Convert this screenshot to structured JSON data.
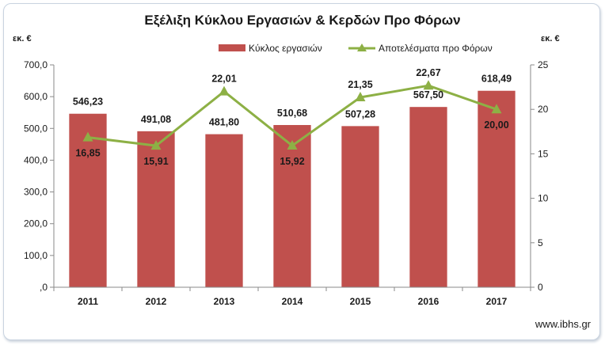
{
  "chart_data": {
    "type": "bar",
    "title": "Εξέλιξη Κύκλου Εργασιών & Κερδών Προ Φόρων",
    "left_unit": "εκ. €",
    "right_unit": "εκ. €",
    "categories": [
      "2011",
      "2012",
      "2013",
      "2014",
      "2015",
      "2016",
      "2017"
    ],
    "series": [
      {
        "name": "Κύκλος εργασιών",
        "type": "bar",
        "axis": "left",
        "color": "#c0504d",
        "values": [
          546.23,
          491.08,
          481.8,
          510.68,
          507.28,
          567.5,
          618.49
        ],
        "labels": [
          "546,23",
          "491,08",
          "481,80",
          "510,68",
          "507,28",
          "567,50",
          "618,49"
        ]
      },
      {
        "name": "Αποτελέσματα προ Φόρων",
        "type": "line",
        "axis": "right",
        "color": "#8db045",
        "values": [
          16.85,
          15.91,
          22.01,
          15.92,
          21.35,
          22.67,
          20.0
        ],
        "labels": [
          "16,85",
          "15,91",
          "22,01",
          "15,92",
          "21,35",
          "22,67",
          "20,00"
        ]
      }
    ],
    "ylim_left": [
      0,
      700
    ],
    "yticks_left": [
      ",0",
      "100,0",
      "200,0",
      "300,0",
      "400,0",
      "500,0",
      "600,0",
      "700,0"
    ],
    "ylim_right": [
      0,
      25
    ],
    "yticks_right": [
      "0",
      "5",
      "10",
      "15",
      "20",
      "25"
    ],
    "grid": false,
    "legend_position": "top-right"
  },
  "source": "www.ibhs.gr"
}
